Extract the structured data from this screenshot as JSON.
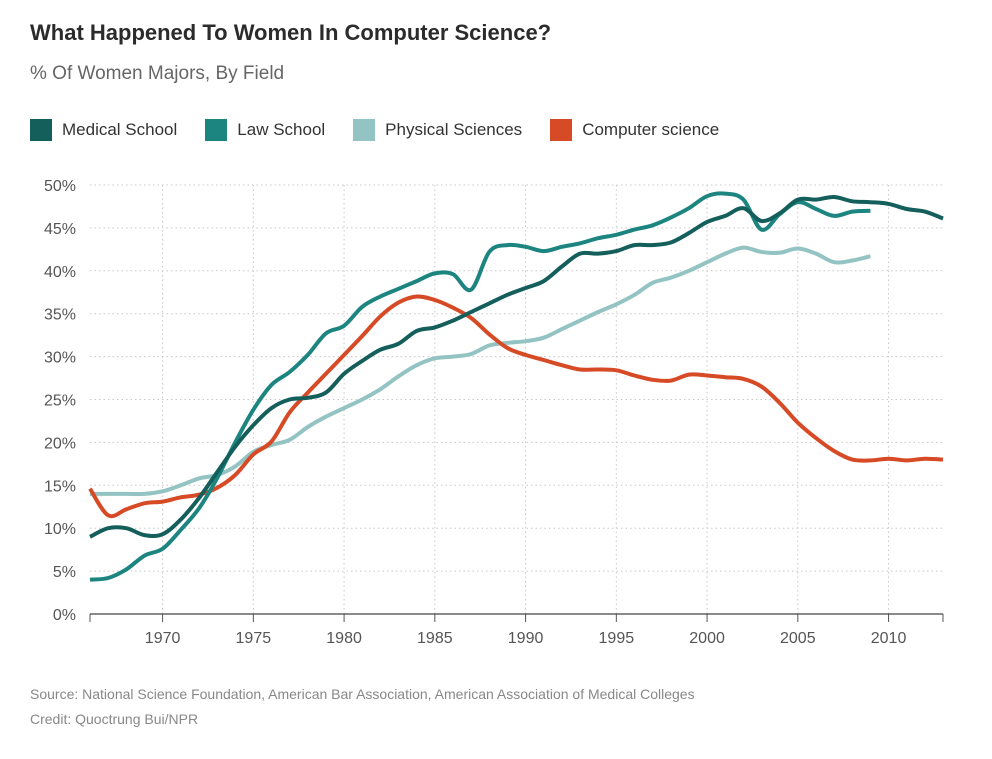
{
  "chart_data": {
    "type": "line",
    "title": "What Happened To Women In Computer Science?",
    "subtitle": "% Of Women Majors, By Field",
    "xlabel": "",
    "ylabel": "",
    "xlim": [
      1966,
      2013
    ],
    "ylim": [
      0,
      50
    ],
    "x_ticks": [
      1970,
      1975,
      1980,
      1985,
      1990,
      1995,
      2000,
      2005,
      2010
    ],
    "y_ticks": [
      {
        "value": 0,
        "label": "0%"
      },
      {
        "value": 5,
        "label": "5%"
      },
      {
        "value": 10,
        "label": "10%"
      },
      {
        "value": 15,
        "label": "15%"
      },
      {
        "value": 20,
        "label": "20%"
      },
      {
        "value": 25,
        "label": "25%"
      },
      {
        "value": 30,
        "label": "30%"
      },
      {
        "value": 35,
        "label": "35%"
      },
      {
        "value": 40,
        "label": "40%"
      },
      {
        "value": 45,
        "label": "45%"
      },
      {
        "value": 50,
        "label": "50%"
      }
    ],
    "grid": true,
    "legend_position": "top-left",
    "series": [
      {
        "name": "Medical School",
        "color": "#145e5b",
        "points": [
          [
            1966,
            9
          ],
          [
            1967,
            10
          ],
          [
            1968,
            10
          ],
          [
            1969,
            9.2
          ],
          [
            1970,
            9.3
          ],
          [
            1971,
            11
          ],
          [
            1972,
            13.5
          ],
          [
            1973,
            16.5
          ],
          [
            1974,
            19.5
          ],
          [
            1975,
            22
          ],
          [
            1976,
            24
          ],
          [
            1977,
            25
          ],
          [
            1978,
            25.2
          ],
          [
            1979,
            25.8
          ],
          [
            1980,
            28
          ],
          [
            1981,
            29.5
          ],
          [
            1982,
            30.8
          ],
          [
            1983,
            31.5
          ],
          [
            1984,
            33
          ],
          [
            1985,
            33.4
          ],
          [
            1986,
            34.2
          ],
          [
            1987,
            35.2
          ],
          [
            1988,
            36.2
          ],
          [
            1989,
            37.2
          ],
          [
            1990,
            38
          ],
          [
            1991,
            38.8
          ],
          [
            1992,
            40.5
          ],
          [
            1993,
            42
          ],
          [
            1994,
            42
          ],
          [
            1995,
            42.3
          ],
          [
            1996,
            43
          ],
          [
            1997,
            43
          ],
          [
            1998,
            43.3
          ],
          [
            1999,
            44.4
          ],
          [
            2000,
            45.7
          ],
          [
            2001,
            46.4
          ],
          [
            2002,
            47.3
          ],
          [
            2003,
            45.8
          ],
          [
            2004,
            46.7
          ],
          [
            2005,
            48.3
          ],
          [
            2006,
            48.3
          ],
          [
            2007,
            48.6
          ],
          [
            2008,
            48.1
          ],
          [
            2009,
            48
          ],
          [
            2010,
            47.8
          ],
          [
            2011,
            47.2
          ],
          [
            2012,
            46.9
          ],
          [
            2013,
            46.1
          ]
        ]
      },
      {
        "name": "Law School",
        "color": "#1c8580",
        "points": [
          [
            1966,
            4
          ],
          [
            1967,
            4.2
          ],
          [
            1968,
            5.2
          ],
          [
            1969,
            6.8
          ],
          [
            1970,
            7.6
          ],
          [
            1971,
            9.8
          ],
          [
            1972,
            12.3
          ],
          [
            1973,
            15.8
          ],
          [
            1974,
            20
          ],
          [
            1975,
            23.8
          ],
          [
            1976,
            26.7
          ],
          [
            1977,
            28.2
          ],
          [
            1978,
            30.2
          ],
          [
            1979,
            32.7
          ],
          [
            1980,
            33.6
          ],
          [
            1981,
            35.8
          ],
          [
            1982,
            37
          ],
          [
            1983,
            37.9
          ],
          [
            1984,
            38.8
          ],
          [
            1985,
            39.7
          ],
          [
            1986,
            39.6
          ],
          [
            1987,
            37.8
          ],
          [
            1988,
            42.2
          ],
          [
            1989,
            43
          ],
          [
            1990,
            42.8
          ],
          [
            1991,
            42.3
          ],
          [
            1992,
            42.8
          ],
          [
            1993,
            43.2
          ],
          [
            1994,
            43.8
          ],
          [
            1995,
            44.2
          ],
          [
            1996,
            44.8
          ],
          [
            1997,
            45.3
          ],
          [
            1998,
            46.2
          ],
          [
            1999,
            47.3
          ],
          [
            2000,
            48.7
          ],
          [
            2001,
            49
          ],
          [
            2002,
            48.3
          ],
          [
            2003,
            44.8
          ],
          [
            2004,
            46.6
          ],
          [
            2005,
            48
          ],
          [
            2006,
            47.2
          ],
          [
            2007,
            46.4
          ],
          [
            2008,
            46.9
          ],
          [
            2009,
            47
          ]
        ]
      },
      {
        "name": "Physical Sciences",
        "color": "#94c3c3",
        "points": [
          [
            1966,
            14
          ],
          [
            1967,
            14
          ],
          [
            1968,
            14
          ],
          [
            1969,
            14
          ],
          [
            1970,
            14.3
          ],
          [
            1971,
            15
          ],
          [
            1972,
            15.8
          ],
          [
            1973,
            16.2
          ],
          [
            1974,
            17.2
          ],
          [
            1975,
            18.9
          ],
          [
            1976,
            19.7
          ],
          [
            1977,
            20.3
          ],
          [
            1978,
            21.8
          ],
          [
            1979,
            23
          ],
          [
            1980,
            24
          ],
          [
            1981,
            25
          ],
          [
            1982,
            26.2
          ],
          [
            1983,
            27.7
          ],
          [
            1984,
            29
          ],
          [
            1985,
            29.8
          ],
          [
            1986,
            30
          ],
          [
            1987,
            30.3
          ],
          [
            1988,
            31.3
          ],
          [
            1989,
            31.6
          ],
          [
            1990,
            31.8
          ],
          [
            1991,
            32.2
          ],
          [
            1992,
            33.2
          ],
          [
            1993,
            34.2
          ],
          [
            1994,
            35.2
          ],
          [
            1995,
            36.1
          ],
          [
            1996,
            37.2
          ],
          [
            1997,
            38.6
          ],
          [
            1998,
            39.2
          ],
          [
            1999,
            40
          ],
          [
            2000,
            41
          ],
          [
            2001,
            42
          ],
          [
            2002,
            42.7
          ],
          [
            2003,
            42.2
          ],
          [
            2004,
            42.1
          ],
          [
            2005,
            42.6
          ],
          [
            2006,
            42
          ],
          [
            2007,
            41
          ],
          [
            2008,
            41.2
          ],
          [
            2009,
            41.7
          ]
        ]
      },
      {
        "name": "Computer science",
        "color": "#d64a26",
        "points": [
          [
            1966,
            14.6
          ],
          [
            1967,
            11.5
          ],
          [
            1968,
            12.2
          ],
          [
            1969,
            12.9
          ],
          [
            1970,
            13.1
          ],
          [
            1971,
            13.6
          ],
          [
            1972,
            13.9
          ],
          [
            1973,
            14.7
          ],
          [
            1974,
            16.2
          ],
          [
            1975,
            18.6
          ],
          [
            1976,
            20.1
          ],
          [
            1977,
            23.5
          ],
          [
            1978,
            25.8
          ],
          [
            1979,
            28
          ],
          [
            1980,
            30.2
          ],
          [
            1981,
            32.4
          ],
          [
            1982,
            34.7
          ],
          [
            1983,
            36.3
          ],
          [
            1984,
            37
          ],
          [
            1985,
            36.6
          ],
          [
            1986,
            35.7
          ],
          [
            1987,
            34.5
          ],
          [
            1988,
            32.6
          ],
          [
            1989,
            31
          ],
          [
            1990,
            30.2
          ],
          [
            1991,
            29.6
          ],
          [
            1992,
            29
          ],
          [
            1993,
            28.5
          ],
          [
            1994,
            28.5
          ],
          [
            1995,
            28.4
          ],
          [
            1996,
            27.8
          ],
          [
            1997,
            27.3
          ],
          [
            1998,
            27.2
          ],
          [
            1999,
            27.9
          ],
          [
            2000,
            27.8
          ],
          [
            2001,
            27.6
          ],
          [
            2002,
            27.4
          ],
          [
            2003,
            26.5
          ],
          [
            2004,
            24.6
          ],
          [
            2005,
            22.3
          ],
          [
            2006,
            20.5
          ],
          [
            2007,
            19
          ],
          [
            2008,
            18
          ],
          [
            2009,
            17.9
          ],
          [
            2010,
            18.1
          ],
          [
            2011,
            17.9
          ],
          [
            2012,
            18.1
          ],
          [
            2013,
            18
          ]
        ]
      }
    ]
  },
  "footer": {
    "source": "Source: National Science Foundation, American Bar Association, American Association of Medical Colleges",
    "credit": "Credit: Quoctrung Bui/NPR"
  }
}
